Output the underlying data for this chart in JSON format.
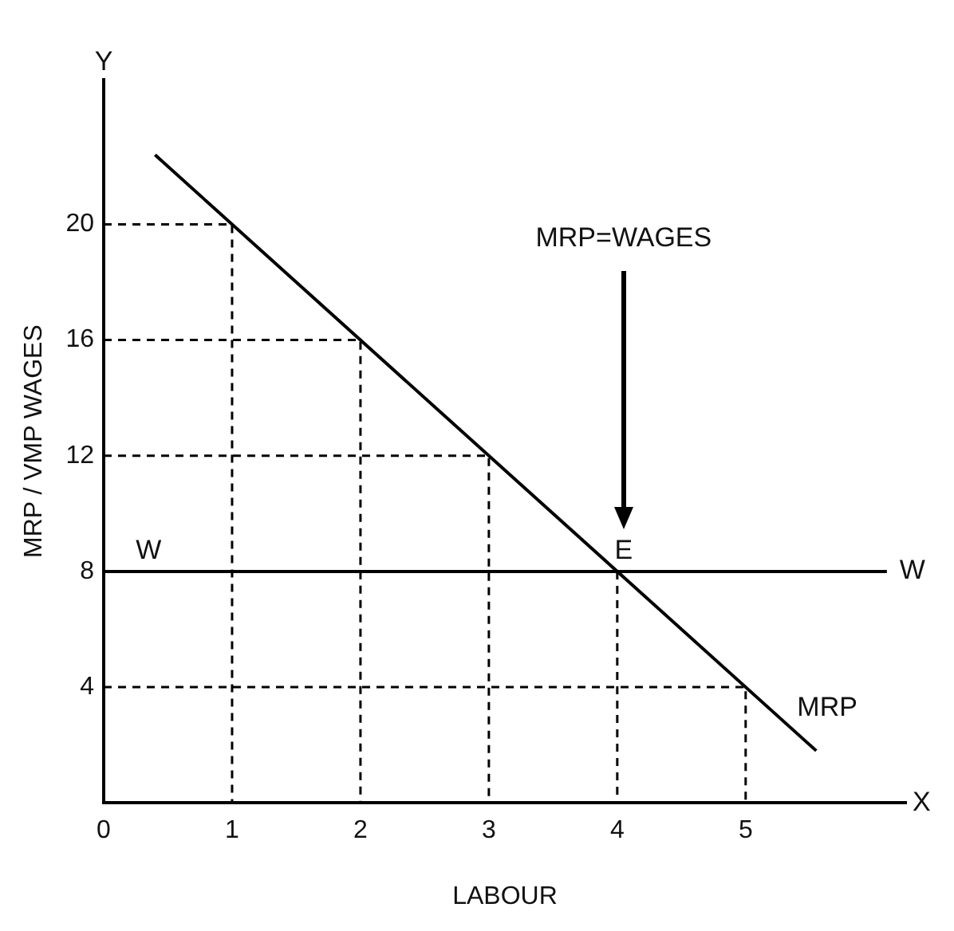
{
  "chart_data": {
    "type": "line",
    "xlabel": "LABOUR",
    "ylabel": "MRP / VMP WAGES",
    "xlim": [
      0,
      6.25
    ],
    "ylim": [
      0,
      25
    ],
    "xticks": [
      0,
      1,
      2,
      3,
      4,
      5
    ],
    "yticks": [
      4,
      8,
      12,
      16,
      20
    ],
    "grid": false,
    "legend": false,
    "marker": "none",
    "series": [
      {
        "name": "MRP",
        "type": "line",
        "color": "#000000",
        "x": [
          0.4,
          5.55
        ],
        "values": [
          22.4,
          1.8
        ]
      },
      {
        "name": "W",
        "type": "line",
        "color": "#000000",
        "x": [
          0,
          6.1
        ],
        "values": [
          8,
          8
        ]
      },
      {
        "type": "line",
        "color": "#000000",
        "line_style": "dashed",
        "x": [
          0,
          1,
          1
        ],
        "values": [
          20,
          20,
          0
        ]
      },
      {
        "type": "line",
        "color": "#000000",
        "line_style": "dashed",
        "x": [
          0,
          2,
          2
        ],
        "values": [
          16,
          16,
          0
        ]
      },
      {
        "type": "line",
        "color": "#000000",
        "line_style": "dashed",
        "x": [
          0,
          3,
          3
        ],
        "values": [
          12,
          12,
          0
        ]
      },
      {
        "type": "line",
        "color": "#000000",
        "line_style": "dashed",
        "x": [
          4,
          4
        ],
        "values": [
          8,
          0
        ]
      },
      {
        "type": "line",
        "color": "#000000",
        "line_style": "dashed",
        "x": [
          0,
          5,
          5
        ],
        "values": [
          4,
          4,
          0
        ]
      }
    ],
    "annotations": [
      {
        "text": "W",
        "x": 0.3,
        "y": 8
      },
      {
        "text": "E",
        "x": 4,
        "y": 8
      },
      "MRP=WAGES",
      "Y",
      "X"
    ]
  }
}
